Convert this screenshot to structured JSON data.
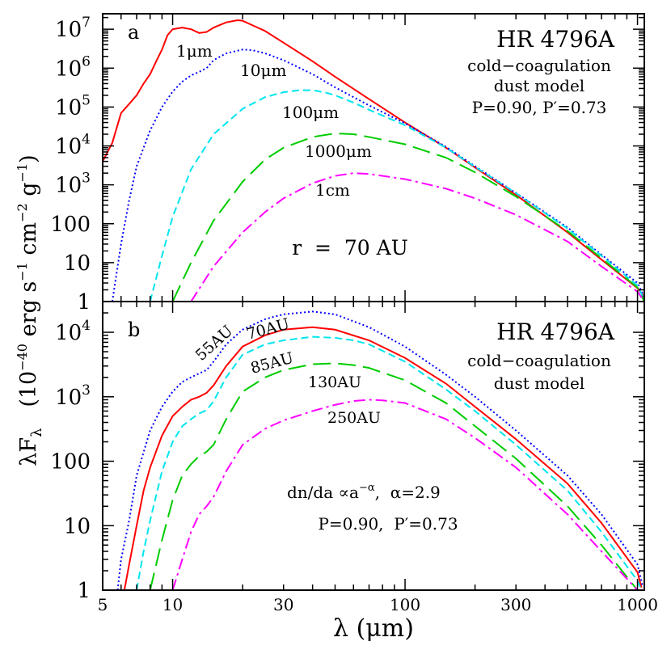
{
  "figure": {
    "xlabel": "λ (μm)",
    "ylabel_main": "λF",
    "ylabel_sub": "λ",
    "ylabel_units": "(10",
    "ylabel_units_exp": "−40",
    "ylabel_units_rest": " erg s",
    "ylabel_exp1": "−1",
    "ylabel_cm": " cm",
    "ylabel_exp2": "−2",
    "ylabel_g": " g",
    "ylabel_exp3": "−1",
    "ylabel_close": ")"
  },
  "chart_data": [
    {
      "type": "line",
      "panel_label": "a",
      "title": "HR 4796A",
      "annotations": [
        "cold−coagulation",
        "dust model",
        "P=0.90,  P′=0.73",
        "r  =  70 AU"
      ],
      "xscale": "log",
      "yscale": "log",
      "xlim": [
        5,
        1070
      ],
      "ylim": [
        1,
        25000000.0
      ],
      "x_ticks": [
        5,
        10,
        30,
        100,
        300,
        1000
      ],
      "x_tick_labels": [
        "5",
        "10",
        "30",
        "100",
        "300",
        "1000"
      ],
      "y_ticks": [
        1,
        10,
        100,
        1000,
        10000,
        100000,
        1000000,
        10000000
      ],
      "y_tick_labels": [
        {
          "base": "1",
          "exp": ""
        },
        {
          "base": "10",
          "exp": ""
        },
        {
          "base": "100",
          "exp": ""
        },
        {
          "base": "10",
          "exp": "3"
        },
        {
          "base": "10",
          "exp": "4"
        },
        {
          "base": "10",
          "exp": "5"
        },
        {
          "base": "10",
          "exp": "6"
        },
        {
          "base": "10",
          "exp": "7"
        }
      ],
      "series": [
        {
          "name": "1μm",
          "color": "#ff0000",
          "style": "solid",
          "x": [
            5,
            5.5,
            6,
            6.5,
            7,
            7.5,
            8,
            8.5,
            9,
            9.5,
            10,
            11,
            12,
            13,
            14,
            15,
            17,
            19,
            20,
            25,
            30,
            40,
            50,
            70,
            100,
            150,
            200,
            300,
            500,
            700,
            1000,
            1070
          ],
          "y": [
            4000,
            12000,
            70000,
            120000,
            200000,
            400000,
            700000,
            1500000,
            3000000,
            7000000,
            10000000,
            11000000,
            10000000,
            8000000,
            8500000,
            11000000,
            15000000,
            17000000,
            16500000,
            9000000,
            4500000,
            1500000,
            600000,
            160000,
            40000,
            9000,
            2800,
            550,
            60,
            12,
            2.2,
            1.3
          ]
        },
        {
          "name": "10μm",
          "color": "#0000ff",
          "style": "dotted",
          "x": [
            5.5,
            6,
            6.5,
            7,
            8,
            9,
            10,
            11,
            12,
            13,
            14,
            15,
            17,
            20,
            22,
            25,
            30,
            40,
            50,
            70,
            100,
            150,
            200,
            300,
            500,
            700,
            1000,
            1070
          ],
          "y": [
            1,
            30,
            400,
            3000,
            25000,
            100000,
            250000,
            450000,
            650000,
            800000,
            1000000,
            1600000,
            2400000,
            3000000,
            2900000,
            2400000,
            1600000,
            700000,
            320000,
            110000,
            38000,
            9500,
            3000,
            620,
            80,
            16,
            3,
            1.3
          ]
        },
        {
          "name": "100μm",
          "color": "#00e5ee",
          "style": "dash",
          "x": [
            8,
            9,
            10,
            12,
            15,
            20,
            25,
            30,
            35,
            40,
            45,
            50,
            60,
            70,
            100,
            150,
            200,
            300,
            500,
            700,
            1000,
            1070
          ],
          "y": [
            1,
            15,
            150,
            2500,
            20000,
            90000,
            180000,
            240000,
            270000,
            270000,
            240000,
            200000,
            130000,
            85000,
            34000,
            9000,
            2900,
            610,
            75,
            15,
            2.6,
            1.1
          ]
        },
        {
          "name": "1000μm",
          "color": "#00cc00",
          "style": "longdash",
          "x": [
            10,
            12,
            15,
            20,
            25,
            30,
            40,
            50,
            60,
            70,
            100,
            150,
            200,
            300,
            500,
            700,
            1000,
            1070
          ],
          "y": [
            1,
            10,
            120,
            1200,
            4500,
            9000,
            17000,
            21000,
            20000,
            17000,
            11000,
            5000,
            2100,
            500,
            65,
            13,
            2.3,
            1
          ]
        },
        {
          "name": "1cm",
          "color": "#ff00ff",
          "style": "dashdot",
          "x": [
            12,
            15,
            20,
            25,
            30,
            40,
            50,
            60,
            70,
            100,
            150,
            200,
            300,
            500,
            700,
            1000,
            1070
          ],
          "y": [
            1,
            8,
            60,
            200,
            450,
            1100,
            1700,
            2000,
            1900,
            1400,
            800,
            450,
            170,
            35,
            8,
            1.8,
            1
          ]
        }
      ]
    },
    {
      "type": "line",
      "panel_label": "b",
      "title": "HR 4796A",
      "annotations": [
        "cold−coagulation",
        "dust model",
        "dn/da ∝a",
        "−α",
        ",  α=2.9",
        "P=0.90,  P′=0.73"
      ],
      "xscale": "log",
      "yscale": "log",
      "xlim": [
        5,
        1070
      ],
      "ylim": [
        1,
        30000
      ],
      "x_ticks": [
        5,
        10,
        30,
        100,
        300,
        1000
      ],
      "x_tick_labels": [
        "5",
        "10",
        "30",
        "100",
        "300",
        "1000"
      ],
      "y_ticks": [
        1,
        10,
        100,
        1000,
        10000
      ],
      "y_tick_labels": [
        {
          "base": "1",
          "exp": ""
        },
        {
          "base": "10",
          "exp": ""
        },
        {
          "base": "100",
          "exp": ""
        },
        {
          "base": "10",
          "exp": "3"
        },
        {
          "base": "10",
          "exp": "4"
        }
      ],
      "series": [
        {
          "name": "55AU",
          "color": "#0000ff",
          "style": "dotted",
          "x": [
            5.8,
            6,
            6.5,
            7,
            8,
            9,
            10,
            11,
            12,
            13,
            14,
            15,
            17,
            20,
            25,
            30,
            40,
            50,
            70,
            100,
            150,
            200,
            300,
            500,
            700,
            1000,
            1050
          ],
          "y": [
            1,
            3,
            12,
            60,
            300,
            700,
            1200,
            1700,
            2000,
            2300,
            2600,
            3500,
            6500,
            11000,
            16000,
            19000,
            21000,
            19000,
            12000,
            6000,
            2200,
            1000,
            300,
            60,
            15,
            2.5,
            1.2
          ]
        },
        {
          "name": "70AU",
          "color": "#ff0000",
          "style": "solid",
          "x": [
            6.2,
            6.5,
            7,
            7.5,
            8,
            9,
            10,
            11,
            12,
            13,
            14,
            15,
            17,
            20,
            25,
            30,
            40,
            50,
            70,
            100,
            150,
            200,
            300,
            500,
            700,
            1000,
            1040
          ],
          "y": [
            1,
            2.5,
            10,
            35,
            80,
            250,
            500,
            700,
            900,
            1000,
            1150,
            1500,
            3000,
            6000,
            9000,
            11000,
            12000,
            11000,
            7500,
            4000,
            1600,
            700,
            220,
            45,
            11,
            1.9,
            1.1
          ]
        },
        {
          "name": "85AU",
          "color": "#00e5ee",
          "style": "dash",
          "x": [
            7,
            7.5,
            8,
            9,
            10,
            11,
            12,
            13,
            14,
            15,
            17,
            20,
            25,
            30,
            40,
            50,
            60,
            70,
            100,
            150,
            200,
            300,
            500,
            700,
            1000,
            1030
          ],
          "y": [
            1,
            4,
            12,
            70,
            200,
            350,
            450,
            550,
            620,
            850,
            2000,
            4500,
            6500,
            7500,
            8500,
            8200,
            7500,
            6500,
            3500,
            1300,
            600,
            180,
            35,
            8,
            1.4,
            1.1
          ]
        },
        {
          "name": "130AU",
          "color": "#00cc00",
          "style": "longdash",
          "x": [
            8,
            9,
            10,
            11,
            12,
            13,
            14,
            15,
            17,
            20,
            25,
            30,
            40,
            50,
            60,
            70,
            100,
            150,
            200,
            300,
            500,
            700,
            1000,
            1020
          ],
          "y": [
            1,
            6,
            25,
            60,
            90,
            120,
            140,
            180,
            450,
            1200,
            2000,
            2600,
            3200,
            3300,
            3100,
            2800,
            1800,
            800,
            350,
            110,
            20,
            5,
            1,
            0.9
          ]
        },
        {
          "name": "250AU",
          "color": "#ff00ff",
          "style": "dashdot",
          "x": [
            10,
            11,
            12,
            13,
            14,
            15,
            17,
            20,
            25,
            30,
            40,
            50,
            60,
            70,
            80,
            100,
            150,
            200,
            300,
            500,
            700,
            1000,
            1020
          ],
          "y": [
            1,
            3,
            8,
            15,
            20,
            28,
            70,
            180,
            320,
            430,
            600,
            750,
            860,
            900,
            880,
            800,
            450,
            230,
            80,
            15,
            4,
            1,
            0.9
          ]
        }
      ]
    }
  ]
}
